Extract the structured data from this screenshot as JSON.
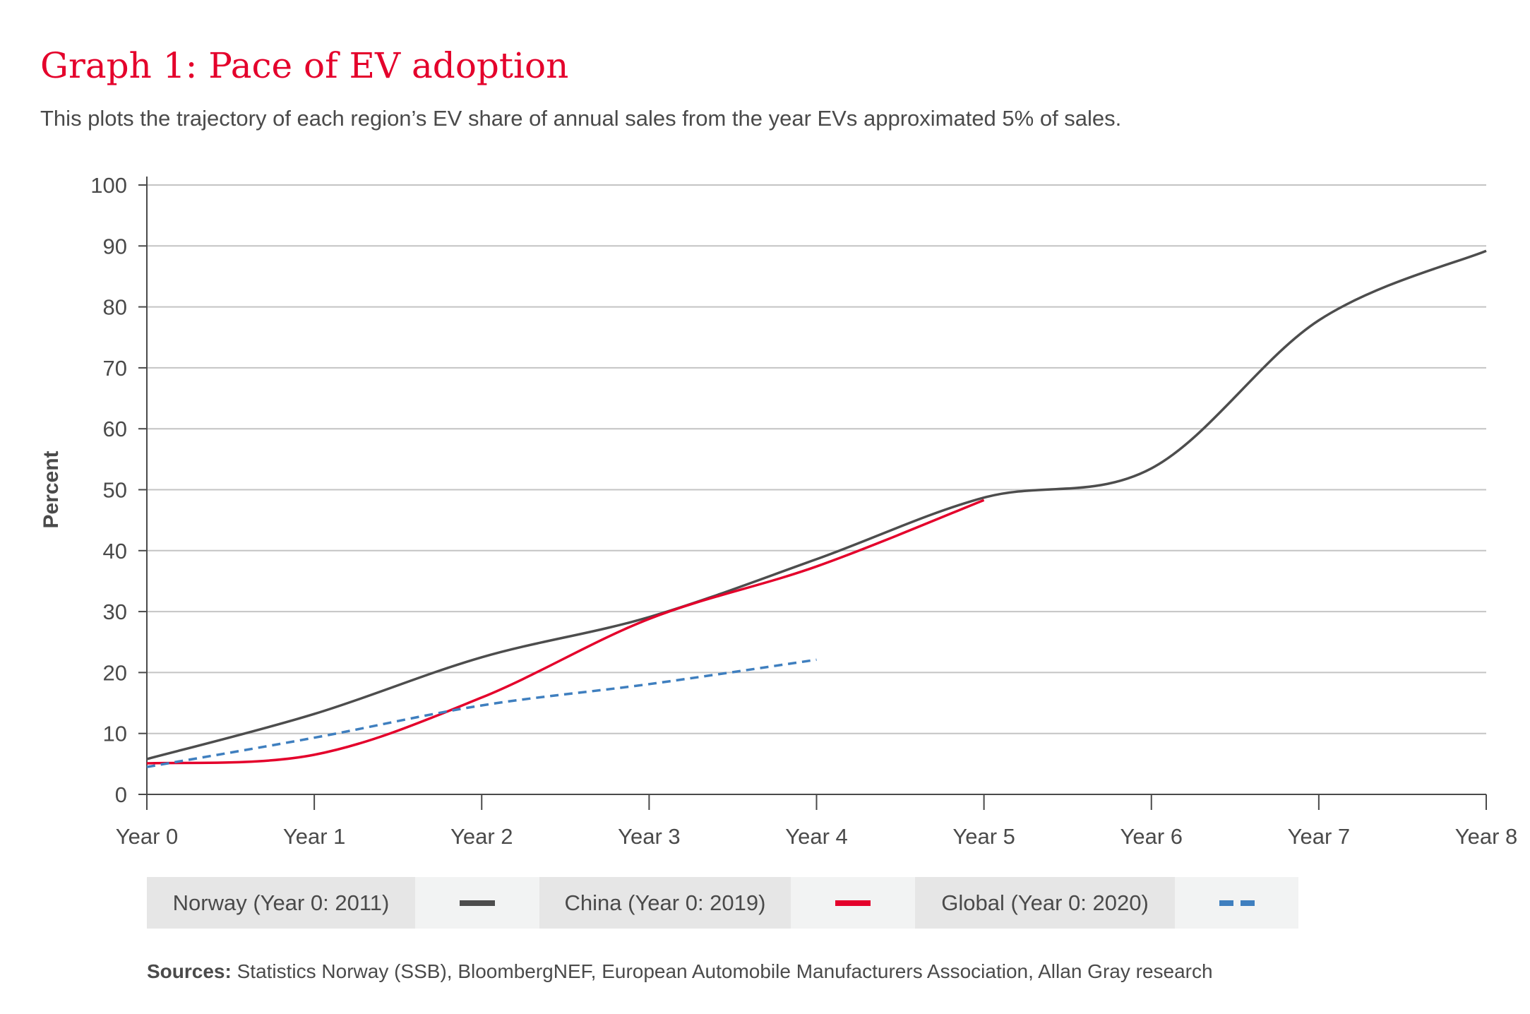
{
  "header": {
    "title": "Graph 1: Pace of EV adoption",
    "subtitle": "This plots the trajectory of each region’s EV share of annual sales from the year EVs approximated 5% of sales."
  },
  "chart_data": {
    "type": "line",
    "ylabel": "Percent",
    "xlabel": "",
    "categories": [
      "Year 0",
      "Year 1",
      "Year 2",
      "Year 3",
      "Year 4",
      "Year 5",
      "Year 6",
      "Year 7",
      "Year 8"
    ],
    "ylim": [
      0,
      100
    ],
    "yticks": [
      0,
      10,
      20,
      30,
      40,
      50,
      60,
      70,
      80,
      90,
      100
    ],
    "grid": "horizontal",
    "legend_position": "bottom",
    "series": [
      {
        "name": "Norway (Year 0: 2011)",
        "color": "#4d4d4d",
        "style": "solid",
        "x": [
          0,
          1,
          2,
          3,
          4,
          5,
          6,
          7,
          8
        ],
        "values": [
          5.8,
          13.2,
          22.5,
          29.1,
          38.6,
          48.7,
          53.5,
          77.8,
          89.2
        ]
      },
      {
        "name": "China (Year 0: 2019)",
        "color": "#e4002b",
        "style": "solid",
        "x": [
          0,
          1,
          2,
          3,
          4,
          5
        ],
        "values": [
          5.1,
          6.5,
          15.9,
          28.8,
          37.4,
          48.3
        ]
      },
      {
        "name": "Global (Year 0: 2020)",
        "color": "#3f7fbf",
        "style": "dashed",
        "x": [
          0,
          1,
          2,
          3,
          4
        ],
        "values": [
          4.5,
          9.3,
          14.6,
          18.1,
          22.1
        ]
      }
    ]
  },
  "sources": {
    "label": "Sources:",
    "text": " Statistics Norway (SSB), BloombergNEF, European Automobile Manufacturers Association, Allan Gray research"
  }
}
